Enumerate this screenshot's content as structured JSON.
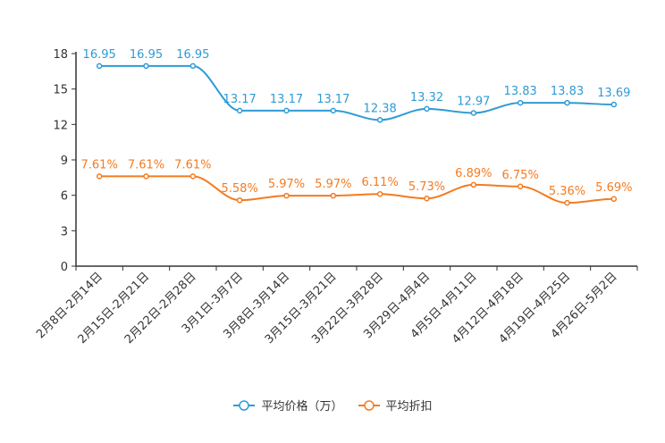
{
  "chart_data": {
    "type": "line",
    "categories": [
      "2月8日-2月14日",
      "2月15日-2月21日",
      "2月22日-2月28日",
      "3月1日-3月7日",
      "3月8日-3月14日",
      "3月15日-3月21日",
      "3月22日-3月28日",
      "3月29日-4月4日",
      "4月5日-4月11日",
      "4月12日-4月18日",
      "4月19日-4月25日",
      "4月26日-5月2日"
    ],
    "series": [
      {
        "name": "平均价格（万）",
        "color": "#2e9bd6",
        "values": [
          16.95,
          16.95,
          16.95,
          13.17,
          13.17,
          13.17,
          12.38,
          13.32,
          12.97,
          13.83,
          13.83,
          13.69
        ],
        "labels": [
          "16.95",
          "16.95",
          "16.95",
          "13.17",
          "13.17",
          "13.17",
          "12.38",
          "13.32",
          "12.97",
          "13.83",
          "13.83",
          "13.69"
        ]
      },
      {
        "name": "平均折扣",
        "color": "#f47b20",
        "values": [
          7.61,
          7.61,
          7.61,
          5.58,
          5.97,
          5.97,
          6.11,
          5.73,
          6.89,
          6.75,
          5.36,
          5.69
        ],
        "labels": [
          "7.61%",
          "7.61%",
          "7.61%",
          "5.58%",
          "5.97%",
          "5.97%",
          "6.11%",
          "5.73%",
          "6.89%",
          "6.75%",
          "5.36%",
          "5.69%"
        ]
      }
    ],
    "yticks": [
      0,
      3,
      6,
      9,
      12,
      15,
      18
    ],
    "ylim": [
      0,
      18
    ],
    "title": "",
    "xlabel": "",
    "ylabel": "",
    "legend_position": "bottom-center"
  }
}
